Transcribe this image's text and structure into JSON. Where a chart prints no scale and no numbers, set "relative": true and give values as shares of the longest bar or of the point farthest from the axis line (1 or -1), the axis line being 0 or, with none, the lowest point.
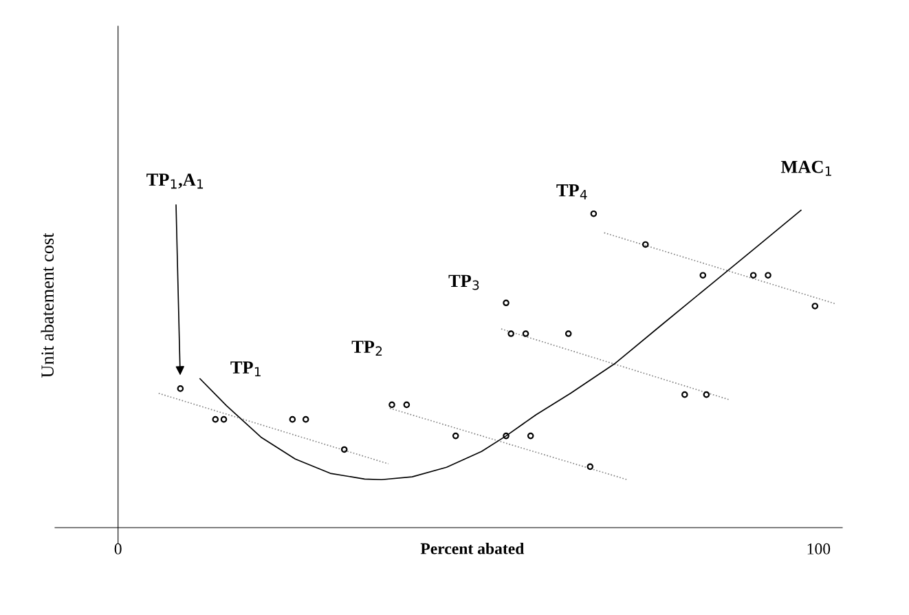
{
  "chart_data": {
    "type": "scatter",
    "relative": true,
    "xlabel": "Percent abated",
    "ylabel": "Unit abatement cost",
    "xlim": [
      -9.0,
      103.4
    ],
    "xticks": [
      0,
      100
    ],
    "legend": false,
    "series": [
      {
        "marker": "circle",
        "color": "#000000",
        "x": [
          8.9,
          13.9,
          15.1,
          24.9,
          26.8,
          32.3
        ],
        "values": [
          0.438,
          0.341,
          0.341,
          0.341,
          0.341,
          0.246
        ]
      },
      {
        "marker": "circle",
        "color": "#000000",
        "x": [
          39.1,
          41.2,
          48.2,
          55.4,
          58.9,
          67.4
        ],
        "values": [
          0.387,
          0.387,
          0.289,
          0.289,
          0.289,
          0.192
        ]
      },
      {
        "marker": "circle",
        "color": "#000000",
        "x": [
          55.4,
          56.1,
          58.2,
          64.3,
          80.9,
          84.0
        ],
        "values": [
          0.708,
          0.611,
          0.611,
          0.611,
          0.419,
          0.419
        ]
      },
      {
        "marker": "circle",
        "color": "#000000",
        "x": [
          67.9,
          75.3,
          83.5,
          90.7,
          92.8,
          99.5
        ],
        "values": [
          0.989,
          0.892,
          0.795,
          0.795,
          0.795,
          0.698
        ]
      },
      {
        "type": "line",
        "color": "#808080",
        "line_style": "dotted",
        "x": [
          5.8,
          38.6
        ],
        "values": [
          0.423,
          0.201
        ]
      },
      {
        "type": "line",
        "color": "#808080",
        "line_style": "dotted",
        "x": [
          38.8,
          72.7
        ],
        "values": [
          0.376,
          0.151
        ]
      },
      {
        "type": "line",
        "color": "#808080",
        "line_style": "dotted",
        "x": [
          54.7,
          87.4
        ],
        "values": [
          0.626,
          0.402
        ]
      },
      {
        "type": "line",
        "color": "#808080",
        "line_style": "dotted",
        "x": [
          69.4,
          102.3
        ],
        "values": [
          0.929,
          0.706
        ]
      },
      {
        "type": "line",
        "color": "#000000",
        "line_style": "solid",
        "x": [
          11.7,
          15.5,
          20.4,
          25.3,
          30.3,
          35.2,
          37.6,
          42.0,
          46.9,
          51.9,
          55.4,
          59.7,
          64.6,
          71.0,
          77.4,
          84.3,
          91.2,
          97.5
        ],
        "values": [
          0.469,
          0.384,
          0.285,
          0.216,
          0.171,
          0.153,
          0.151,
          0.16,
          0.19,
          0.24,
          0.289,
          0.356,
          0.423,
          0.518,
          0.635,
          0.76,
          0.885,
          1.0
        ]
      }
    ],
    "annotations": [
      "TP$_{1}$,A$_{1}$",
      "TP$_{1}$",
      "TP$_{2}$",
      "TP$_{3}$",
      "TP$_{4}$",
      "MAC$_{1}$"
    ]
  }
}
